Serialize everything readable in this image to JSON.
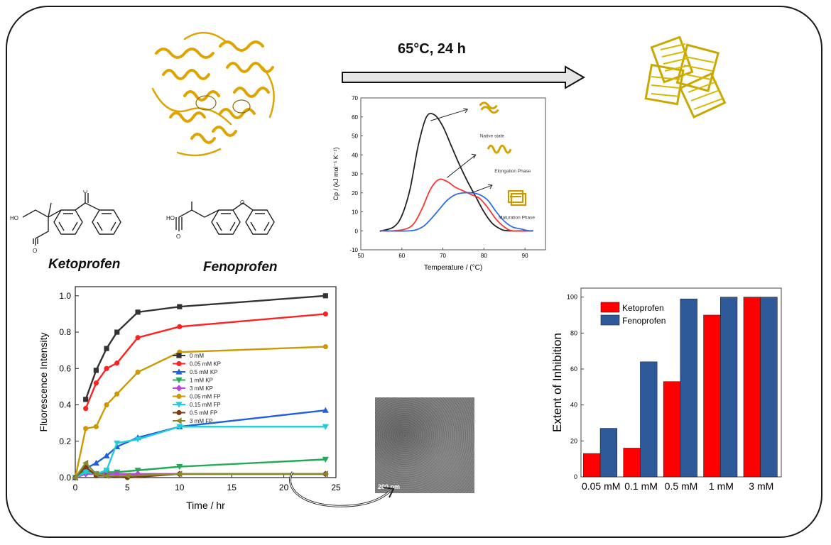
{
  "condition": {
    "label": "65°C, 24 h"
  },
  "chemicals": [
    {
      "name": "Ketoprofen"
    },
    {
      "name": "Fenoprofen"
    }
  ],
  "dsc_inset": {
    "xlabel": "Temperature / (°C)",
    "ylabel": "Cp / (kJ mol⁻¹ K⁻¹)",
    "annotations": [
      "Native state",
      "Elongation Phase",
      "Maturation Phase"
    ],
    "colors": {
      "native": "#222222",
      "elongation": "#ff3333",
      "maturation": "#2f6fe0"
    }
  },
  "tem_image": {
    "scale_label": "200 nm"
  },
  "chart_data": [
    {
      "type": "line",
      "xlabel": "Time / hr",
      "ylabel": "Fluorescence Intensity",
      "xlim": [
        0,
        25
      ],
      "ylim": [
        0,
        1.05
      ],
      "xticks": [
        0,
        5,
        10,
        15,
        20,
        25
      ],
      "yticks": [
        0.0,
        0.2,
        0.4,
        0.6,
        0.8,
        1.0
      ],
      "legend_position": "center",
      "series": [
        {
          "name": "0 mM",
          "color": "#333333",
          "marker": "square",
          "x": [
            1,
            2,
            3,
            4,
            6,
            10,
            24
          ],
          "y": [
            0.43,
            0.59,
            0.71,
            0.8,
            0.91,
            0.94,
            1.0
          ]
        },
        {
          "name": "0.05 mM KP",
          "color": "#ff2222",
          "marker": "circle",
          "x": [
            1,
            2,
            3,
            4,
            6,
            10,
            24
          ],
          "y": [
            0.38,
            0.52,
            0.6,
            0.63,
            0.77,
            0.83,
            0.9
          ]
        },
        {
          "name": "0.5 mM KP",
          "color": "#2060dd",
          "marker": "triangle-up",
          "x": [
            0,
            1,
            2,
            3,
            4,
            6,
            10,
            24
          ],
          "y": [
            0.0,
            0.05,
            0.08,
            0.12,
            0.17,
            0.22,
            0.28,
            0.37
          ]
        },
        {
          "name": "1 mM KP",
          "color": "#22aa55",
          "marker": "triangle-down",
          "x": [
            0,
            1,
            2,
            3,
            4,
            6,
            10,
            24
          ],
          "y": [
            0.0,
            0.04,
            0.02,
            0.03,
            0.03,
            0.04,
            0.06,
            0.1
          ]
        },
        {
          "name": "3 mM KP",
          "color": "#bb44dd",
          "marker": "diamond",
          "x": [
            0,
            1,
            2,
            3,
            4,
            6,
            10,
            24
          ],
          "y": [
            0.0,
            0.02,
            0.02,
            0.02,
            0.02,
            0.02,
            0.02,
            0.02
          ]
        },
        {
          "name": "0.05 mM FP",
          "color": "#cc9900",
          "marker": "circle",
          "x": [
            0,
            1,
            2,
            3,
            4,
            6,
            10,
            24
          ],
          "y": [
            0.0,
            0.27,
            0.28,
            0.4,
            0.46,
            0.58,
            0.69,
            0.72
          ]
        },
        {
          "name": "0.15 mM FP",
          "color": "#22ccdd",
          "marker": "triangle-down",
          "x": [
            0,
            1,
            2,
            3,
            4,
            6,
            10,
            24
          ],
          "y": [
            0.0,
            0.03,
            0.02,
            0.04,
            0.19,
            0.21,
            0.28,
            0.28
          ]
        },
        {
          "name": "0.5 mM FP",
          "color": "#7a3b1a",
          "marker": "circle",
          "x": [
            0,
            1,
            2,
            3,
            5,
            10,
            24
          ],
          "y": [
            0.0,
            0.06,
            0.01,
            0.01,
            0.0,
            0.02,
            0.02
          ]
        },
        {
          "name": "3 mM FP",
          "color": "#8a8a2a",
          "marker": "triangle-left",
          "x": [
            0,
            1,
            2,
            3,
            5,
            10,
            24
          ],
          "y": [
            0.0,
            0.08,
            0.02,
            0.01,
            0.01,
            0.02,
            0.02
          ]
        }
      ]
    },
    {
      "type": "bar",
      "ylabel": "Extent of Inhibition",
      "ylim": [
        0,
        105
      ],
      "yticks": [
        0,
        20,
        40,
        60,
        80,
        100
      ],
      "legend_position": "top-left",
      "categories": [
        "0.05 mM",
        "0.1 mM",
        "0.5 mM",
        "1 mM",
        "3 mM"
      ],
      "series": [
        {
          "name": "Ketoprofen",
          "color": "#ff0000",
          "values": [
            13,
            16,
            53,
            90,
            100
          ]
        },
        {
          "name": "Fenoprofen",
          "color": "#2e5a9a",
          "values": [
            27,
            64,
            99,
            100,
            100
          ]
        }
      ]
    },
    {
      "type": "line",
      "xlabel": "Temperature / (°C)",
      "ylabel": "Cp / (kJ mol⁻¹ K⁻¹)",
      "xlim": [
        50,
        95
      ],
      "ylim": [
        -10,
        70
      ],
      "xticks": [
        50,
        60,
        70,
        80,
        90
      ],
      "yticks": [
        -10,
        0,
        10,
        20,
        30,
        40,
        50,
        60,
        70
      ],
      "series": [
        {
          "name": "Native state",
          "color": "#222222",
          "x": [
            55,
            58,
            60,
            62,
            64,
            66,
            68,
            70,
            72,
            74,
            76,
            78,
            80,
            82,
            84,
            86
          ],
          "y": [
            0,
            2,
            8,
            22,
            45,
            60,
            61,
            55,
            45,
            35,
            26,
            18,
            10,
            4,
            1,
            0
          ]
        },
        {
          "name": "Elongation Phase",
          "color": "#ff3333",
          "x": [
            58,
            61,
            63,
            65,
            67,
            69,
            71,
            73,
            75,
            77,
            79,
            81,
            83,
            85,
            87
          ],
          "y": [
            0,
            1,
            4,
            12,
            22,
            27,
            26,
            23,
            21,
            19,
            17,
            12,
            6,
            2,
            0
          ]
        },
        {
          "name": "Maturation Phase",
          "color": "#2f6fe0",
          "x": [
            62,
            65,
            67,
            69,
            71,
            73,
            75,
            77,
            79,
            81,
            83,
            85,
            87,
            89,
            91
          ],
          "y": [
            0,
            2,
            6,
            11,
            16,
            19,
            20,
            20,
            19,
            16,
            10,
            5,
            2,
            1,
            0
          ]
        }
      ]
    }
  ]
}
